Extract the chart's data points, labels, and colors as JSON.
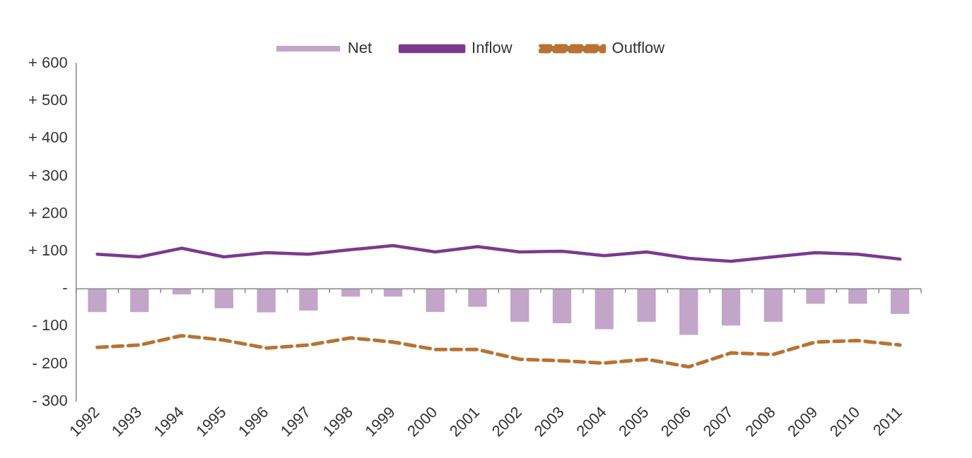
{
  "chart_data": {
    "type": "bar",
    "categories": [
      "1992",
      "1993",
      "1994",
      "1995",
      "1996",
      "1997",
      "1998",
      "1999",
      "2000",
      "2001",
      "2002",
      "2003",
      "2004",
      "2005",
      "2006",
      "2007",
      "2008",
      "2009",
      "2010",
      "2011"
    ],
    "series": [
      {
        "name": "Net",
        "color": "#c3a5c9",
        "values": [
          -62,
          -62,
          -15,
          -52,
          -63,
          -58,
          -21,
          -21,
          -62,
          -48,
          -88,
          -92,
          -108,
          -88,
          -123,
          -98,
          -88,
          -40,
          -40,
          -67
        ]
      },
      {
        "name": "Inflow",
        "type": "line",
        "color": "#7b3a8e",
        "line_style": "solid",
        "values": [
          92,
          85,
          108,
          85,
          96,
          92,
          104,
          115,
          98,
          112,
          98,
          100,
          88,
          98,
          81,
          73,
          85,
          96,
          92,
          79
        ]
      },
      {
        "name": "Outflow",
        "type": "line",
        "color": "#b87333",
        "line_style": "dashed",
        "values": [
          -156,
          -150,
          -125,
          -137,
          -158,
          -150,
          -131,
          -142,
          -162,
          -162,
          -188,
          -192,
          -198,
          -188,
          -208,
          -171,
          -175,
          -142,
          -138,
          -150
        ]
      }
    ],
    "ylim": [
      -300,
      600
    ],
    "yticks": [
      {
        "value": -300,
        "label": "- 300"
      },
      {
        "value": -200,
        "label": "- 200"
      },
      {
        "value": -100,
        "label": "- 100"
      },
      {
        "value": 0,
        "label": "-"
      },
      {
        "value": 100,
        "label": "+ 100"
      },
      {
        "value": 200,
        "label": "+ 200"
      },
      {
        "value": 300,
        "label": "+ 300"
      },
      {
        "value": 400,
        "label": "+ 400"
      },
      {
        "value": 500,
        "label": "+ 500"
      },
      {
        "value": 600,
        "label": "+ 600"
      }
    ],
    "ref_lines": [
      {
        "axis": "y",
        "value": 0,
        "color": "#888888"
      }
    ],
    "grid": false,
    "legend": "top",
    "marker": "none"
  }
}
